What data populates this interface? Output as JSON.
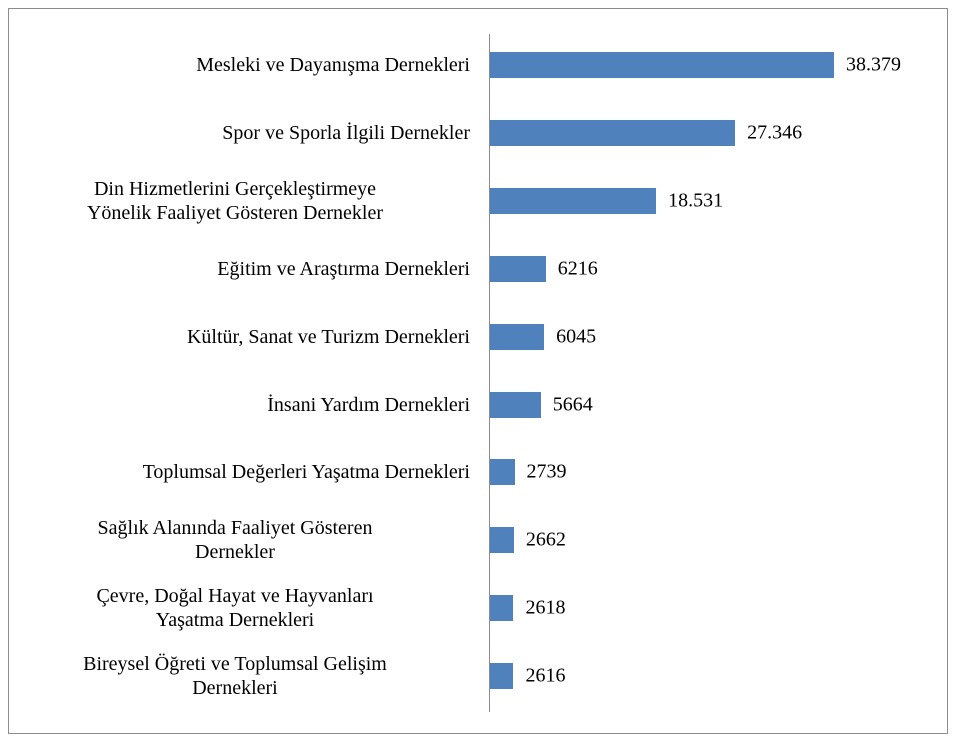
{
  "chart_data": {
    "type": "bar",
    "orientation": "horizontal",
    "categories": [
      "Mesleki ve Dayanışma Dernekleri",
      "Spor ve Sporla İlgili Dernekler",
      "Din Hizmetlerini Gerçekleştirmeye\nYönelik Faaliyet Gösteren Dernekler",
      "Eğitim ve Araştırma Dernekleri",
      "Kültür, Sanat ve Turizm Dernekleri",
      "İnsani Yardım Dernekleri",
      "Toplumsal Değerleri Yaşatma Dernekleri",
      "Sağlık Alanında Faaliyet Gösteren\nDernekler",
      "Çevre, Doğal Hayat ve Hayvanları\nYaşatma Dernekleri",
      "Bireysel Öğreti ve Toplumsal Gelişim\nDernekleri"
    ],
    "values": [
      38379,
      27346,
      18531,
      6216,
      6045,
      5664,
      2739,
      2662,
      2618,
      2616
    ],
    "value_labels": [
      "38.379",
      "27.346",
      "18.531",
      "6216",
      "6045",
      "5664",
      "2739",
      "2662",
      "2618",
      "2616"
    ],
    "color": "#4f81bd"
  }
}
